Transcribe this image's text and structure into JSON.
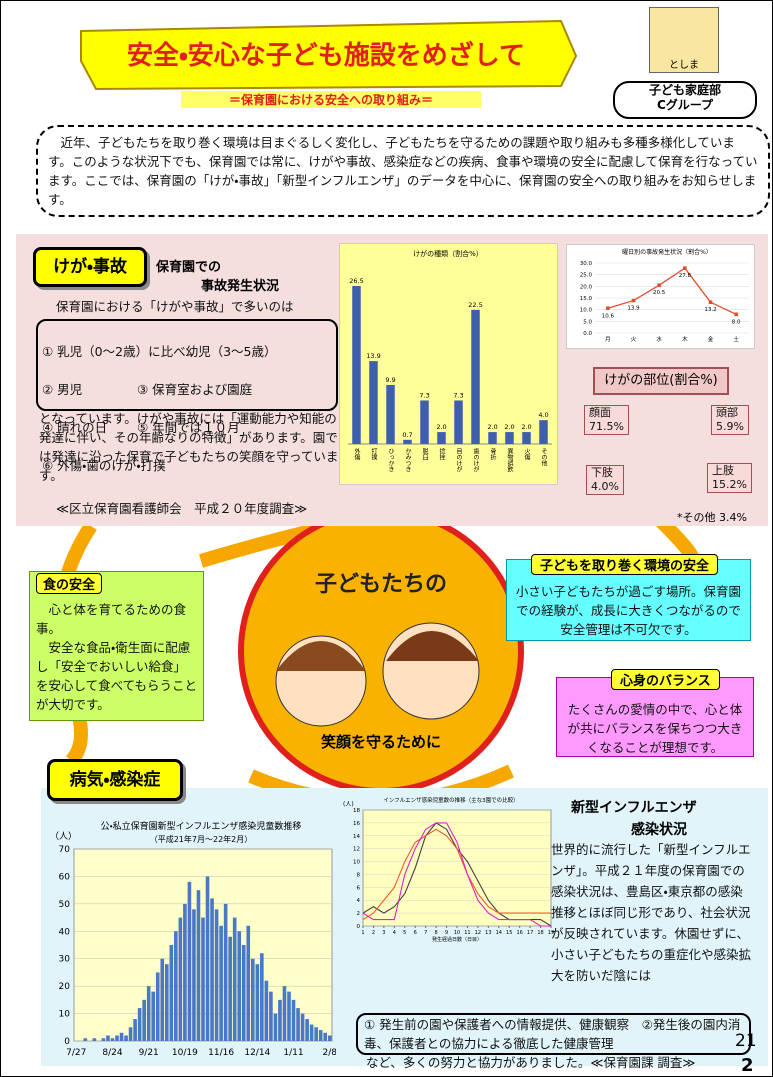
{
  "header": {
    "title": "安全・安心な子ども施設をめざして",
    "subtitle": "＝保育園における安全への取り組み＝",
    "logo_text": "としま",
    "dept": "子ども家庭部",
    "group": "Cグループ"
  },
  "intro": "近年、子どもたちを取り巻く環境は目まぐるしく変化し、子どもたちを守るための課題や取り組みも多種多様化しています。このような状況下でも、保育園では常に、けがや事故、感染症などの疾病、食事や環境の安全に配慮して保育を行なっています。ここでは、保育園の「けが・事故」「新型インフルエンザ」のデータを中心に、保育園の安全への取り組みをお知らせします。",
  "injury": {
    "heading": "けが・事故",
    "subhead1": "保育園での",
    "subhead2": "事故発生状況",
    "lead": "保育園における「けがや事故」で多いのは",
    "list": [
      "① 乳児（0～2歳）に比べ幼児（3～5歳）",
      "② 男児",
      "③ 保育室および園庭",
      "④ 晴れの日",
      "⑤ 年間では１０月",
      "⑥ 外傷・歯のけが・打撲"
    ],
    "body": "となっています。けがや事故には「運動能力や知能の発達に伴い、その年齢なりの特徴」があります。園では発達に沿った保育で子どもたちの笑顔を守っています。",
    "source": "≪区立保育園看護師会　平成２０年度調査≫"
  },
  "injury_chart": {
    "type": "bar",
    "title": "けがの種類（割合%）",
    "categories": [
      "外傷",
      "打撲",
      "ひっかき",
      "かみつき",
      "脱臼",
      "捻挫",
      "目のけが",
      "歯のけが",
      "骨折",
      "異物誤飲",
      "火傷",
      "その他"
    ],
    "values": [
      26.5,
      13.9,
      9.9,
      0.7,
      7.3,
      2.0,
      7.3,
      22.5,
      2.0,
      2.0,
      2.0,
      4.0
    ],
    "value_labels": [
      "26.5",
      "13.9",
      "9.9",
      "0.7",
      "7.3",
      "2.0",
      "7.3",
      "22.5",
      "2.0",
      "2.0",
      "2.0",
      "4.0"
    ],
    "color": "#3f5fae"
  },
  "weekday_chart": {
    "type": "line",
    "title": "曜日別の事故発生状況（割合%）",
    "categories": [
      "月",
      "火",
      "水",
      "木",
      "金",
      "土"
    ],
    "values": [
      10.6,
      13.9,
      20.5,
      27.8,
      13.2,
      8.0
    ],
    "value_labels": [
      "10.6",
      "13.9",
      "20.5",
      "27.8",
      "13.2",
      "8.0"
    ],
    "color": "#e0502c",
    "ylim": [
      0,
      30
    ],
    "yticks": [
      {
        "value": 0,
        "label": "0.0"
      },
      {
        "value": 5,
        "label": "5.0"
      },
      {
        "value": 10,
        "label": "10.0"
      },
      {
        "value": 15,
        "label": "15.0"
      },
      {
        "value": 20,
        "label": "20.0"
      },
      {
        "value": 25,
        "label": "25.0"
      },
      {
        "value": 30,
        "label": "30.0"
      }
    ],
    "grid": true
  },
  "body_parts": {
    "title": "けがの部位(割合%)",
    "face": "顔面\n71.5%",
    "head": "頭部\n5.9%",
    "legs": "下肢\n4.0%",
    "arms": "上肢\n15.2%",
    "other": "*その他 3.4%"
  },
  "food": {
    "title": "食の安全",
    "text": "　心と体を育てるための食事。\n　安全な食品・衛生面に配慮し「安全でおいしい給食」を安心して食べてもらうことが大切です。"
  },
  "center": {
    "top": "子どもたちの",
    "bottom": "笑顔を守るために"
  },
  "environment": {
    "title": "子どもを取り巻く環境の安全",
    "text": "小さい子どもたちが過ごす場所。保育園での経験が、成長に大きくつながるので安全管理は不可欠です。"
  },
  "balance": {
    "title": "心身のバランス",
    "text": "たくさんの愛情の中で、心と体が共にバランスを保ちつつ大きくなることが理想です。"
  },
  "illness": {
    "heading": "病気・感染症",
    "title1": "新型インフルエンザ",
    "title2": "感染状況",
    "text": "世界的に流行した「新型インフルエンザ」。平成２１年度の保育園での感染状況は、豊島区・東京都の感染推移とほぼ同じ形であり、社会状況が反映されています。休園せずに、小さい子どもたちの重症化や感染拡大を防いだ陰には",
    "box": "① 発生前の園や保護者への情報提供、健康観察　②発生後の園内消毒、保護者との協力による徹底した健康管理",
    "closing": "など、多くの努力と協力がありました。≪保育園課 調査≫"
  },
  "flu_chart": {
    "type": "bar",
    "title": "公・私立保育園新型インフルエンザ感染児童数推移",
    "subtitle": "（平成21年7月～22年2月）",
    "ylabel": "（人）",
    "color": "#4a78c8",
    "categories": [
      "7/27",
      null,
      null,
      null,
      null,
      null,
      null,
      null,
      "8/24",
      null,
      null,
      null,
      null,
      null,
      null,
      null,
      "9/21",
      null,
      null,
      null,
      null,
      null,
      null,
      null,
      "10/19",
      null,
      null,
      null,
      null,
      null,
      null,
      null,
      "11/16",
      null,
      null,
      null,
      null,
      null,
      null,
      null,
      "12/14",
      null,
      null,
      null,
      null,
      null,
      null,
      null,
      "1/11",
      null,
      null,
      null,
      null,
      null,
      null,
      null,
      "2/8"
    ],
    "values": [
      0,
      0,
      1,
      0,
      1,
      0,
      1,
      2,
      1,
      2,
      3,
      2,
      5,
      8,
      12,
      15,
      20,
      18,
      25,
      30,
      28,
      35,
      40,
      45,
      50,
      58,
      48,
      55,
      45,
      60,
      52,
      48,
      42,
      50,
      38,
      45,
      40,
      35,
      42,
      30,
      28,
      32,
      22,
      18,
      10,
      15,
      20,
      18,
      15,
      12,
      10,
      8,
      6,
      5,
      4,
      3,
      2
    ],
    "ylim": [
      0,
      70
    ],
    "yticks": [
      0,
      10,
      20,
      30,
      40,
      50,
      60,
      70
    ]
  },
  "compare_chart": {
    "type": "line",
    "title": "インフルエンザ感染児童数の推移（主な3園での比較）",
    "ylabel": "(人)",
    "xlabel": "発生経過日数（日目）",
    "x": [
      1,
      2,
      3,
      4,
      5,
      6,
      7,
      8,
      9,
      10,
      11,
      12,
      13,
      14,
      15,
      16,
      17,
      18,
      19
    ],
    "xlim": [
      1,
      19
    ],
    "xticks": [
      1,
      2,
      3,
      4,
      5,
      6,
      7,
      8,
      9,
      10,
      11,
      12,
      13,
      14,
      15,
      16,
      17,
      18,
      19
    ],
    "ylim": [
      0,
      18
    ],
    "yticks": [
      0,
      2,
      4,
      6,
      8,
      10,
      12,
      14,
      16,
      18
    ],
    "series": [
      {
        "color": "#404048",
        "values": [
          2,
          3,
          2,
          3,
          5,
          9,
          14,
          16,
          15,
          12,
          10,
          7,
          4,
          2,
          1,
          1,
          1,
          1,
          0
        ]
      },
      {
        "color": "#f05a28",
        "values": [
          1,
          2,
          4,
          6,
          10,
          13,
          14,
          15,
          14,
          12,
          8,
          5,
          3,
          2,
          2,
          2,
          2,
          2,
          2
        ]
      },
      {
        "color": "#e020c8",
        "values": [
          2,
          1,
          1,
          1,
          8,
          12,
          15,
          16,
          16,
          13,
          8,
          4,
          2,
          1,
          1,
          1,
          1,
          0,
          0
        ]
      }
    ]
  },
  "page_numbers": [
    "21",
    "2"
  ]
}
